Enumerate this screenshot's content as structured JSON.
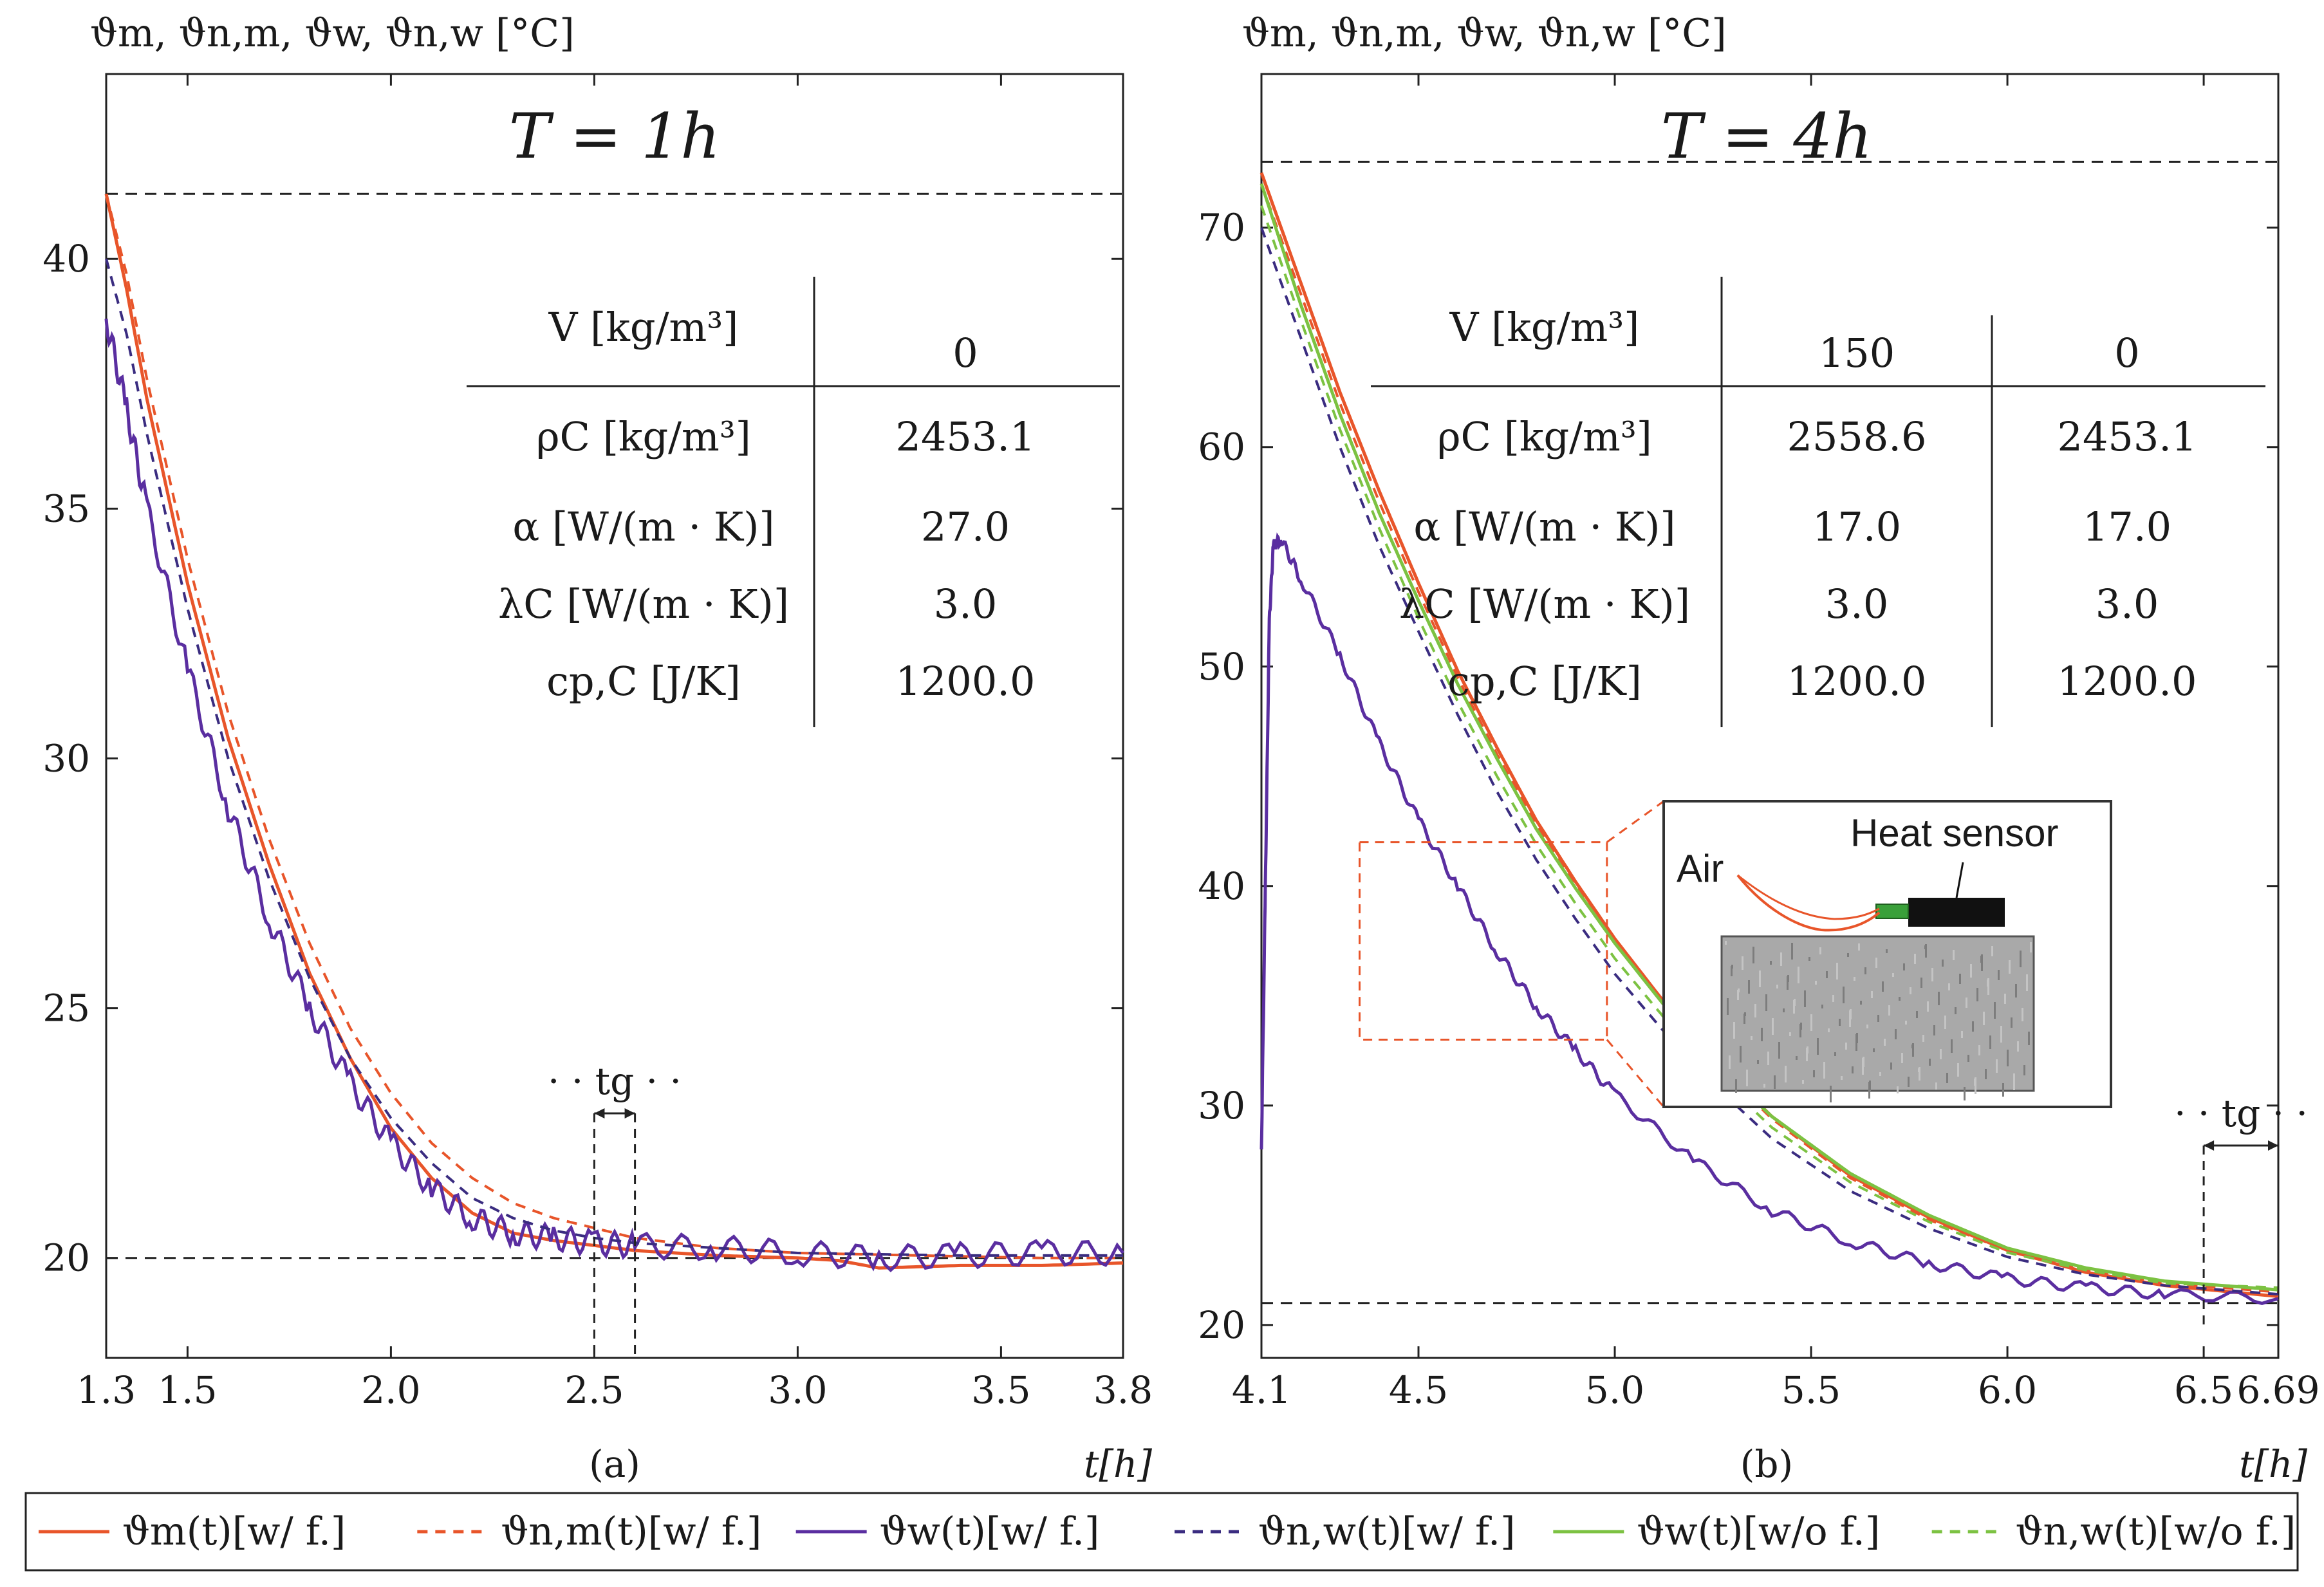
{
  "chart_data": [
    {
      "type": "line",
      "panel": "(a)",
      "title": "T = 1h",
      "ylabel": "ϑm, ϑn,m, ϑw, ϑn,w [°C]",
      "xlabel": "t[h]",
      "xlim": [
        1.3,
        3.8
      ],
      "ylim": [
        18,
        43.7
      ],
      "xticks": [
        1.3,
        1.5,
        2.0,
        2.5,
        3.0,
        3.5,
        3.8
      ],
      "xtick_labels": [
        "1.3",
        "1.5",
        "2.0",
        "2.5",
        "3.0",
        "3.5",
        "3.8"
      ],
      "yticks": [
        20,
        25,
        30,
        35,
        40
      ],
      "ytick_labels": [
        "20",
        "25",
        "30",
        "35",
        "40"
      ],
      "hlines": [
        41.3,
        20.0
      ],
      "tg_label": "· · tg · ·",
      "tg_interval": [
        2.5,
        2.6
      ],
      "series": [
        {
          "name": "ϑm(t)[w/ f.]",
          "key": "m_wf",
          "color": "#e8552a",
          "dash": false,
          "x": [
            1.3,
            1.35,
            1.4,
            1.5,
            1.6,
            1.7,
            1.8,
            1.9,
            2.0,
            2.1,
            2.2,
            2.3,
            2.4,
            2.5,
            2.6,
            2.8,
            3.0,
            3.1,
            3.2,
            3.4,
            3.6,
            3.8
          ],
          "y": [
            41.3,
            39.4,
            37.2,
            33.5,
            30.4,
            27.9,
            25.7,
            24.0,
            22.6,
            21.6,
            20.9,
            20.5,
            20.35,
            20.25,
            20.15,
            20.05,
            20.0,
            19.95,
            19.8,
            19.85,
            19.85,
            19.9
          ]
        },
        {
          "name": "ϑn,m(t)[w/ f.]",
          "key": "nm_wf",
          "color": "#e8552a",
          "dash": true,
          "x": [
            1.3,
            1.35,
            1.4,
            1.5,
            1.6,
            1.7,
            1.8,
            1.9,
            2.0,
            2.1,
            2.2,
            2.3,
            2.4,
            2.5,
            2.6,
            2.8,
            3.0,
            3.3,
            3.6,
            3.8
          ],
          "y": [
            41.3,
            39.7,
            37.6,
            34.0,
            30.9,
            28.4,
            26.3,
            24.6,
            23.3,
            22.3,
            21.6,
            21.1,
            20.8,
            20.6,
            20.4,
            20.2,
            20.1,
            20.05,
            20.0,
            20.0
          ]
        },
        {
          "name": "ϑw(t)[w/ f.]",
          "key": "w_wf",
          "color": "#5a2ea0",
          "dash": false,
          "x": [
            1.3,
            1.35,
            1.4,
            1.5,
            1.6,
            1.7,
            1.8,
            1.9,
            2.0,
            2.1,
            2.2,
            2.3,
            2.4,
            2.5,
            2.6,
            2.8,
            3.0,
            3.2,
            3.4,
            3.6,
            3.8
          ],
          "y": [
            38.8,
            37.0,
            35.0,
            31.8,
            29.0,
            26.8,
            25.0,
            23.5,
            22.3,
            21.4,
            20.8,
            20.5,
            20.4,
            20.3,
            20.25,
            20.2,
            20.1,
            20.0,
            20.05,
            20.1,
            20.1
          ]
        },
        {
          "name": "ϑn,w(t)[w/ f.]",
          "key": "nw_wf",
          "color": "#3a2c80",
          "dash": true,
          "x": [
            1.3,
            1.35,
            1.4,
            1.5,
            1.6,
            1.7,
            1.8,
            1.9,
            2.0,
            2.1,
            2.2,
            2.3,
            2.4,
            2.5,
            2.6,
            2.8,
            3.0,
            3.4,
            3.8
          ],
          "y": [
            40.0,
            38.5,
            36.5,
            33.0,
            30.0,
            27.6,
            25.6,
            24.0,
            22.8,
            21.9,
            21.2,
            20.8,
            20.55,
            20.4,
            20.3,
            20.2,
            20.1,
            20.05,
            20.05
          ]
        }
      ],
      "table": {
        "header": [
          "V [kg/m³]",
          "0"
        ],
        "rows": [
          [
            "ρC [kg/m³]",
            "2453.1"
          ],
          [
            "α [W/(m · K)]",
            "27.0"
          ],
          [
            "λC [W/(m · K)]",
            "3.0"
          ],
          [
            "cp,C [J/K]",
            "1200.0"
          ]
        ]
      },
      "caption": "(a)"
    },
    {
      "type": "line",
      "panel": "(b)",
      "title": "T = 4h",
      "ylabel": "ϑm, ϑn,m, ϑw, ϑn,w [°C]",
      "xlabel": "t[h]",
      "xlim": [
        4.1,
        6.69
      ],
      "ylim": [
        18.5,
        77
      ],
      "xticks": [
        4.1,
        4.5,
        5.0,
        5.5,
        6.0,
        6.5,
        6.69
      ],
      "xtick_labels": [
        "4.1",
        "4.5",
        "5.0",
        "5.5",
        "6.0",
        "6.5",
        "6.69"
      ],
      "yticks": [
        20,
        30,
        40,
        50,
        60,
        70
      ],
      "ytick_labels": [
        "20",
        "30",
        "40",
        "50",
        "60",
        "70"
      ],
      "hlines": [
        73.0,
        21.0
      ],
      "tg_label": "· · tg · ·",
      "tg_interval": [
        6.5,
        6.69
      ],
      "series": [
        {
          "name": "ϑm(t)[w/ f.]",
          "key": "m_wf",
          "color": "#e8552a",
          "dash": false,
          "x": [
            4.1,
            4.2,
            4.3,
            4.4,
            4.5,
            4.6,
            4.7,
            4.8,
            4.9,
            5.0,
            5.2,
            5.4,
            5.6,
            5.8,
            6.0,
            6.2,
            6.4,
            6.69
          ],
          "y": [
            72.5,
            67.5,
            62.5,
            58.0,
            53.8,
            49.8,
            46.3,
            43.0,
            40.2,
            37.6,
            33.0,
            29.5,
            26.8,
            24.9,
            23.4,
            22.4,
            21.8,
            21.3
          ]
        },
        {
          "name": "ϑn,m(t)[w/ f.]",
          "key": "nm_wf",
          "color": "#e8552a",
          "dash": true,
          "x": [
            4.1,
            4.2,
            4.3,
            4.4,
            4.5,
            4.6,
            4.7,
            4.8,
            4.9,
            5.0,
            5.2,
            5.4,
            5.6,
            5.8,
            6.0,
            6.2,
            6.4,
            6.69
          ],
          "y": [
            72.0,
            67.0,
            62.0,
            57.5,
            53.4,
            49.5,
            46.0,
            42.8,
            40.0,
            37.4,
            32.9,
            29.4,
            26.7,
            24.8,
            23.4,
            22.5,
            21.9,
            21.5
          ]
        },
        {
          "name": "ϑw(t)[w/ f.]",
          "key": "w_wf",
          "color": "#5a2ea0",
          "dash": false,
          "x": [
            4.1,
            4.11,
            4.12,
            4.13,
            4.15,
            4.2,
            4.3,
            4.4,
            4.5,
            4.6,
            4.7,
            4.8,
            4.9,
            5.0,
            5.2,
            5.4,
            5.6,
            5.8,
            6.0,
            6.2,
            6.4,
            6.69
          ],
          "y": [
            28.0,
            40.0,
            52.0,
            55.5,
            55.8,
            54.0,
            50.5,
            46.5,
            43.0,
            40.0,
            37.0,
            34.5,
            32.5,
            30.5,
            27.5,
            25.2,
            23.8,
            22.8,
            22.1,
            21.7,
            21.4,
            21.2
          ]
        },
        {
          "name": "ϑn,w(t)[w/ f.]",
          "key": "nw_wf",
          "color": "#3a2c80",
          "dash": true,
          "x": [
            4.1,
            4.2,
            4.3,
            4.4,
            4.5,
            4.6,
            4.7,
            4.8,
            4.9,
            5.0,
            5.2,
            5.4,
            5.6,
            5.8,
            6.0,
            6.2,
            6.4,
            6.69
          ],
          "y": [
            70.0,
            65.0,
            60.0,
            55.5,
            51.6,
            47.8,
            44.3,
            41.2,
            38.5,
            36.0,
            31.8,
            28.5,
            26.1,
            24.4,
            23.1,
            22.3,
            21.8,
            21.4
          ]
        },
        {
          "name": "ϑw(t)[w/o f.]",
          "key": "w_wof",
          "color": "#7cc242",
          "dash": false,
          "x": [
            4.1,
            4.2,
            4.3,
            4.4,
            4.5,
            4.6,
            4.7,
            4.8,
            4.9,
            5.0,
            5.2,
            5.4,
            5.6,
            5.8,
            6.0,
            6.2,
            6.4,
            6.69
          ],
          "y": [
            72.0,
            66.5,
            61.5,
            57.0,
            53.0,
            49.2,
            45.8,
            42.6,
            39.9,
            37.4,
            32.9,
            29.5,
            26.9,
            25.0,
            23.5,
            22.6,
            22.0,
            21.6
          ]
        },
        {
          "name": "ϑn,w(t)[w/o f.]",
          "key": "nw_wof",
          "color": "#7cc242",
          "dash": true,
          "x": [
            4.1,
            4.2,
            4.3,
            4.4,
            4.5,
            4.6,
            4.7,
            4.8,
            4.9,
            5.0,
            5.2,
            5.4,
            5.6,
            5.8,
            6.0,
            6.2,
            6.4,
            6.69
          ],
          "y": [
            71.0,
            65.8,
            60.8,
            56.3,
            52.2,
            48.4,
            45.0,
            41.9,
            39.2,
            36.7,
            32.4,
            29.0,
            26.5,
            24.7,
            23.3,
            22.5,
            21.9,
            21.7
          ]
        }
      ],
      "table": {
        "header": [
          "V [kg/m³]",
          "150",
          "0"
        ],
        "rows": [
          [
            "ρC [kg/m³]",
            "2558.6",
            "2453.1"
          ],
          [
            "α [W/(m · K)]",
            "17.0",
            "17.0"
          ],
          [
            "λC [W/(m · K)]",
            "3.0",
            "3.0"
          ],
          [
            "cp,C [J/K]",
            "1200.0",
            "1200.0"
          ]
        ]
      },
      "zoom_box": {
        "x": [
          4.35,
          4.98
        ],
        "y": [
          33.0,
          42.0
        ]
      },
      "inset": {
        "air_label": "Air",
        "sensor_label": "Heat sensor"
      },
      "caption": "(b)"
    }
  ],
  "legend": [
    {
      "label": "ϑm(t)[w/ f.]",
      "color": "#e8552a",
      "dash": false
    },
    {
      "label": "ϑn,m(t)[w/ f.]",
      "color": "#e8552a",
      "dash": true
    },
    {
      "label": "ϑw(t)[w/ f.]",
      "color": "#5a2ea0",
      "dash": false
    },
    {
      "label": "ϑn,w(t)[w/ f.]",
      "color": "#3a2c80",
      "dash": true
    },
    {
      "label": "ϑw(t)[w/o f.]",
      "color": "#7cc242",
      "dash": false
    },
    {
      "label": "ϑn,w(t)[w/o f.]",
      "color": "#7cc242",
      "dash": true
    }
  ]
}
